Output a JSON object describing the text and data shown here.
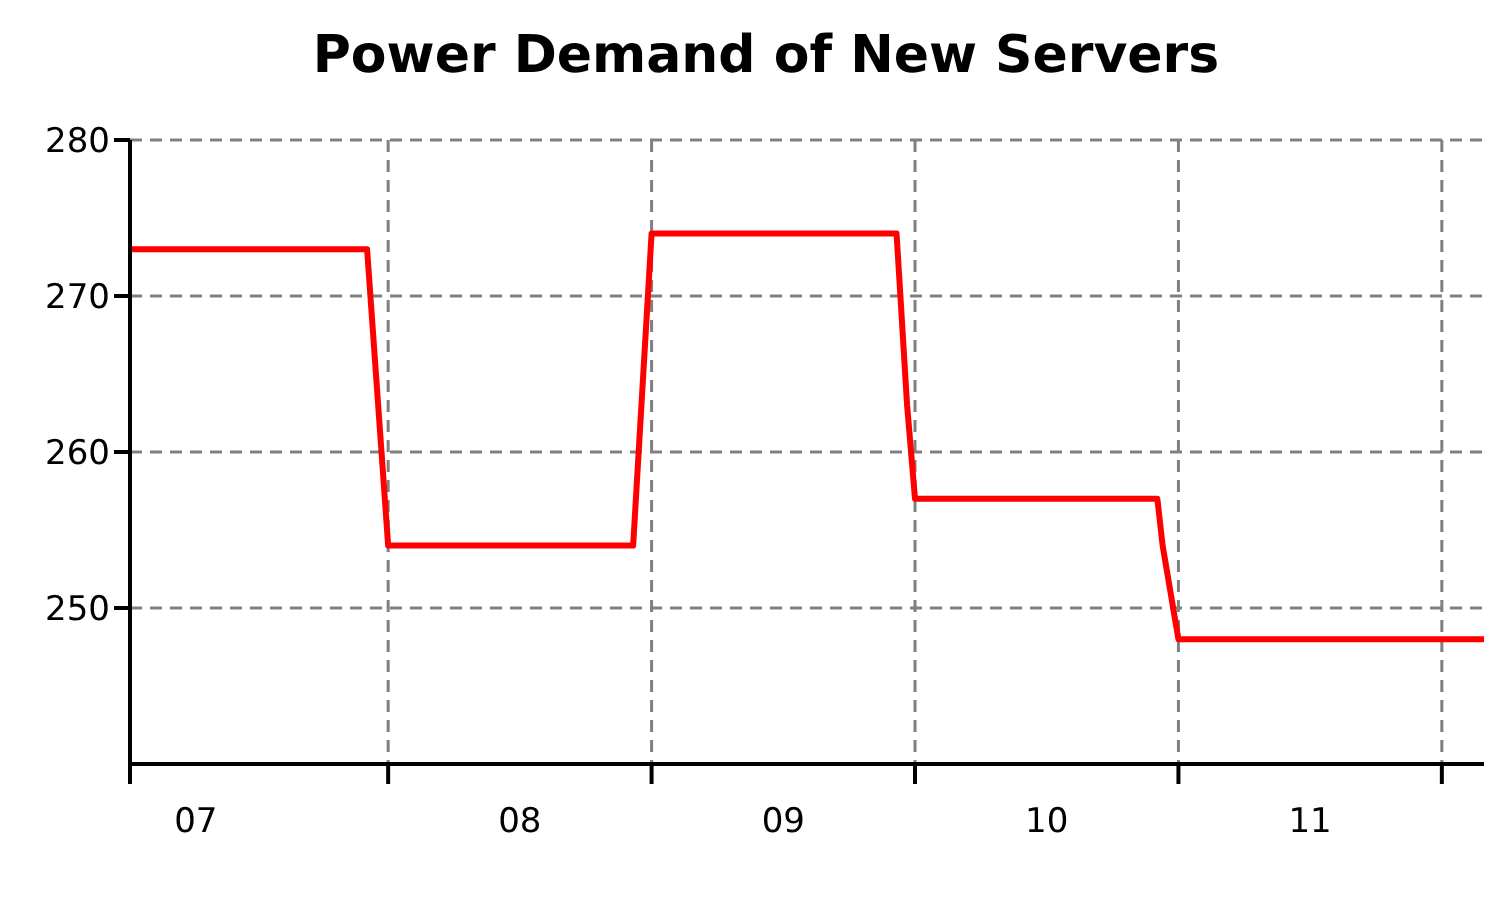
{
  "chart_data": {
    "type": "line",
    "title": "Power Demand of New Servers",
    "x": [
      7.02,
      7.92,
      8.0,
      8.93,
      9.0,
      9.93,
      9.97,
      10.0,
      10.92,
      10.94,
      11.0,
      12.16
    ],
    "series": [
      {
        "color": "#ff0000",
        "values": [
          273,
          273,
          254,
          254,
          274,
          274,
          263,
          257,
          257,
          254,
          248,
          248
        ]
      }
    ],
    "xlim": [
      7.02,
      12.16
    ],
    "xticks": [
      {
        "value": 7.27,
        "label": "07"
      },
      {
        "value": 8,
        "label": null
      },
      {
        "value": 8.5,
        "label": "08"
      },
      {
        "value": 9,
        "label": null
      },
      {
        "value": 9.5,
        "label": "09"
      },
      {
        "value": 10,
        "label": null
      },
      {
        "value": 10.5,
        "label": "10"
      },
      {
        "value": 11,
        "label": null
      },
      {
        "value": 11.5,
        "label": "11"
      },
      {
        "value": 12,
        "label": null
      }
    ],
    "ylim": [
      240,
      280
    ],
    "yticks": [
      250,
      260,
      270,
      280
    ],
    "grid": true,
    "marker": "none",
    "line_style": "solid"
  }
}
